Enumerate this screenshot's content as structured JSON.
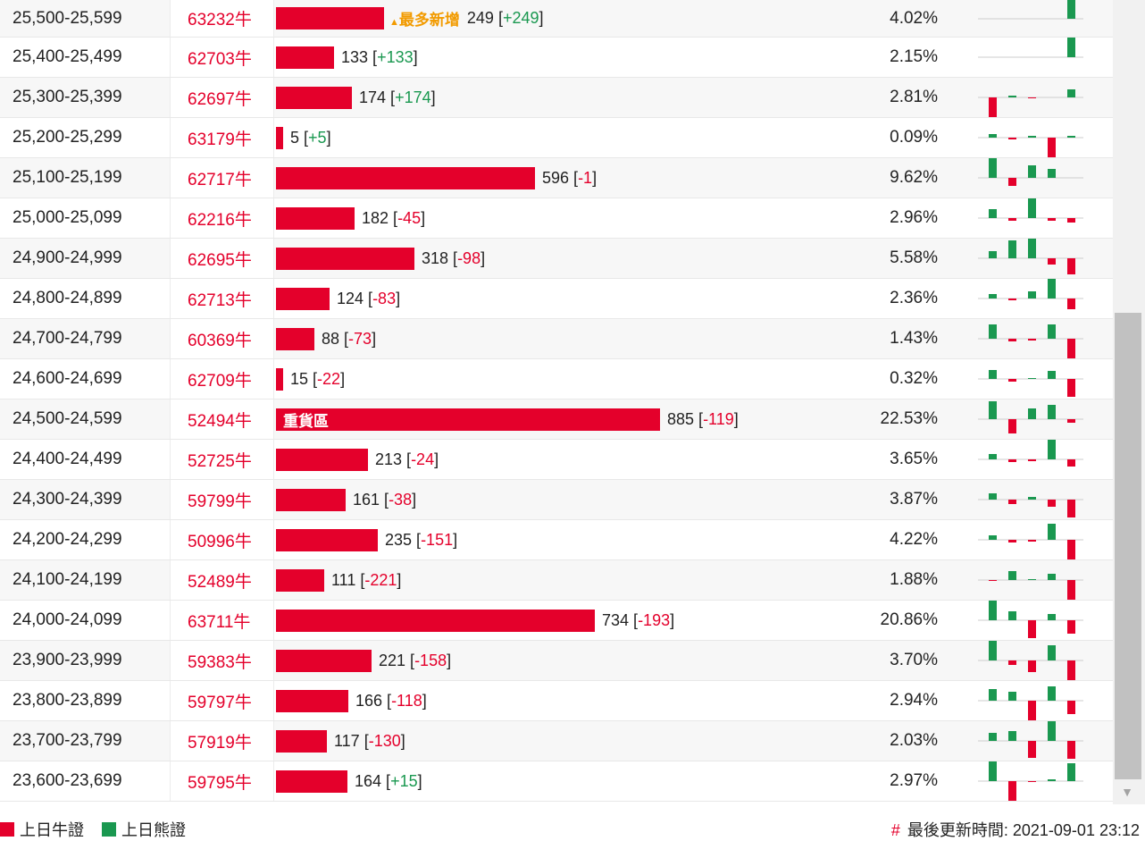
{
  "rows": [
    {
      "range": "25,500-25,599",
      "code": "63232牛",
      "qty": 249,
      "chg": "+249",
      "pct": "4.02%",
      "tag": "最多新增",
      "spark": [
        0,
        0,
        0,
        0,
        25
      ]
    },
    {
      "range": "25,400-25,499",
      "code": "62703牛",
      "qty": 133,
      "chg": "+133",
      "pct": "2.15%",
      "spark": [
        0,
        0,
        0,
        0,
        22
      ]
    },
    {
      "range": "25,300-25,399",
      "code": "62697牛",
      "qty": 174,
      "chg": "+174",
      "pct": "2.81%",
      "spark": [
        -22,
        2,
        -1,
        0,
        9
      ]
    },
    {
      "range": "25,200-25,299",
      "code": "63179牛",
      "qty": 5,
      "chg": "+5",
      "pct": "0.09%",
      "spark": [
        4,
        -2,
        2,
        -22,
        2
      ]
    },
    {
      "range": "25,100-25,199",
      "code": "62717牛",
      "qty": 596,
      "chg": "-1",
      "pct": "9.62%",
      "spark": [
        22,
        -9,
        14,
        10,
        0
      ]
    },
    {
      "range": "25,000-25,099",
      "code": "62216牛",
      "qty": 182,
      "chg": "-45",
      "pct": "2.96%",
      "spark": [
        10,
        -3,
        22,
        -3,
        -5
      ]
    },
    {
      "range": "24,900-24,999",
      "code": "62695牛",
      "qty": 318,
      "chg": "-98",
      "pct": "5.58%",
      "spark": [
        8,
        20,
        22,
        -7,
        -18
      ]
    },
    {
      "range": "24,800-24,899",
      "code": "62713牛",
      "qty": 124,
      "chg": "-83",
      "pct": "2.36%",
      "spark": [
        5,
        -2,
        8,
        22,
        -12
      ]
    },
    {
      "range": "24,700-24,799",
      "code": "60369牛",
      "qty": 88,
      "chg": "-73",
      "pct": "1.43%",
      "spark": [
        16,
        -3,
        -2,
        16,
        -22
      ]
    },
    {
      "range": "24,600-24,699",
      "code": "62709牛",
      "qty": 15,
      "chg": "-22",
      "pct": "0.32%",
      "spark": [
        10,
        -3,
        1,
        9,
        -20
      ]
    },
    {
      "range": "24,500-24,599",
      "code": "52494牛",
      "qty": 885,
      "chg": "-119",
      "pct": "22.53%",
      "label": "重貨區",
      "spark": [
        20,
        -16,
        12,
        16,
        -4
      ]
    },
    {
      "range": "24,400-24,499",
      "code": "52725牛",
      "qty": 213,
      "chg": "-24",
      "pct": "3.65%",
      "spark": [
        6,
        -3,
        -2,
        22,
        -8
      ]
    },
    {
      "range": "24,300-24,399",
      "code": "59799牛",
      "qty": 161,
      "chg": "-38",
      "pct": "3.87%",
      "spark": [
        7,
        -5,
        3,
        -8,
        -20
      ]
    },
    {
      "range": "24,200-24,299",
      "code": "50996牛",
      "qty": 235,
      "chg": "-151",
      "pct": "4.22%",
      "spark": [
        5,
        -3,
        -2,
        18,
        -22
      ]
    },
    {
      "range": "24,100-24,199",
      "code": "52489牛",
      "qty": 111,
      "chg": "-221",
      "pct": "1.88%",
      "spark": [
        -1,
        10,
        1,
        7,
        -22
      ]
    },
    {
      "range": "24,000-24,099",
      "code": "63711牛",
      "qty": 734,
      "chg": "-193",
      "pct": "20.86%",
      "spark": [
        22,
        10,
        -20,
        7,
        -15
      ]
    },
    {
      "range": "23,900-23,999",
      "code": "59383牛",
      "qty": 221,
      "chg": "-158",
      "pct": "3.70%",
      "spark": [
        22,
        -5,
        -13,
        17,
        -22
      ]
    },
    {
      "range": "23,800-23,899",
      "code": "59797牛",
      "qty": 166,
      "chg": "-118",
      "pct": "2.94%",
      "spark": [
        13,
        10,
        -22,
        16,
        -15
      ]
    },
    {
      "range": "23,700-23,799",
      "code": "57919牛",
      "qty": 117,
      "chg": "-130",
      "pct": "2.03%",
      "spark": [
        9,
        11,
        -19,
        22,
        -20
      ]
    },
    {
      "range": "23,600-23,699",
      "code": "59795牛",
      "qty": 164,
      "chg": "+15",
      "pct": "2.97%",
      "spark": [
        22,
        -22,
        -1,
        2,
        20
      ]
    }
  ],
  "footer": {
    "legend_bull": "上日牛證",
    "legend_bear": "上日熊證",
    "update_label": "最後更新時間: 2021-09-01 23:12",
    "hash": "#"
  },
  "colors": {
    "bull": "#e4002b",
    "bear": "#1a9850",
    "tag": "#f29b00"
  }
}
